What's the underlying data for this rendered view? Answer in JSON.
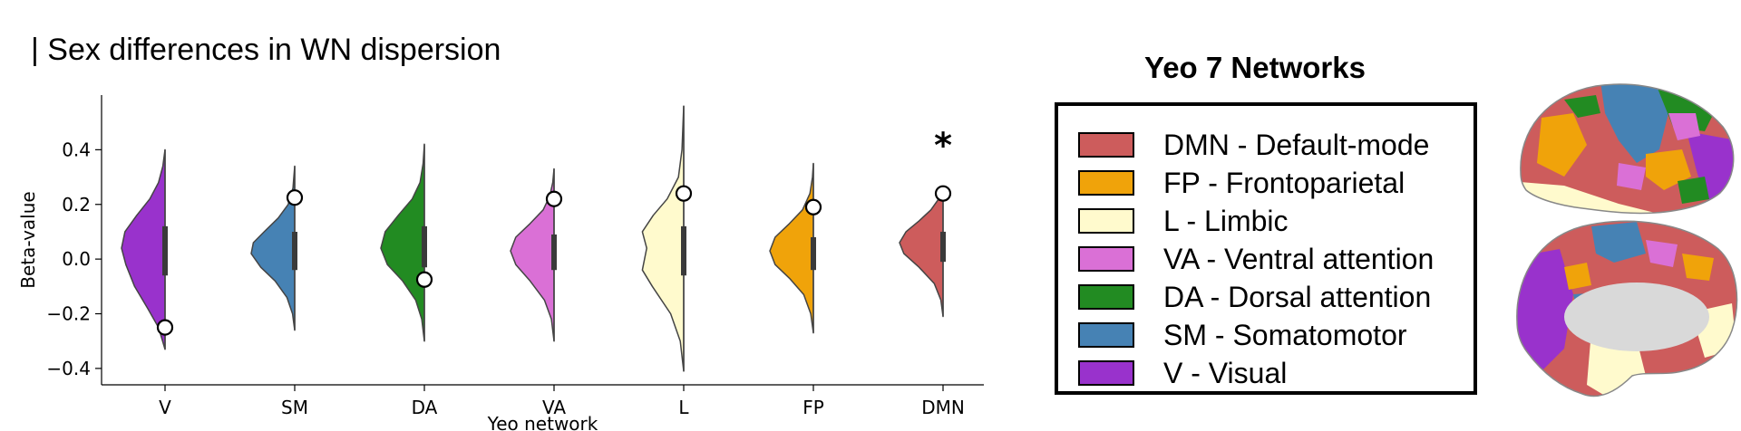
{
  "title": "| Sex differences in WN dispersion",
  "chart_data": {
    "type": "violin",
    "xlabel": "Yeo network",
    "ylabel": "Beta-value",
    "ylim": [
      -0.46,
      0.6
    ],
    "yticks": [
      -0.4,
      -0.2,
      0.0,
      0.2,
      0.4
    ],
    "ytick_labels": [
      "−0.4",
      "−0.2",
      "0.0",
      "0.2",
      "0.4"
    ],
    "categories": [
      "V",
      "SM",
      "DA",
      "VA",
      "L",
      "FP",
      "DMN"
    ],
    "violins": [
      {
        "category": "V",
        "color": "#9932cc",
        "min": -0.33,
        "max": 0.4,
        "q1": -0.06,
        "q3": 0.12,
        "median": 0.03,
        "observed": -0.25,
        "significant": false,
        "profile": [
          [
            -0.33,
            0.0
          ],
          [
            -0.25,
            0.15
          ],
          [
            -0.18,
            0.4
          ],
          [
            -0.1,
            0.7
          ],
          [
            -0.02,
            0.9
          ],
          [
            0.04,
            1.0
          ],
          [
            0.1,
            0.92
          ],
          [
            0.16,
            0.65
          ],
          [
            0.22,
            0.35
          ],
          [
            0.28,
            0.15
          ],
          [
            0.34,
            0.05
          ],
          [
            0.4,
            0.0
          ]
        ]
      },
      {
        "category": "SM",
        "color": "#4682b4",
        "min": -0.26,
        "max": 0.34,
        "q1": -0.04,
        "q3": 0.1,
        "median": 0.03,
        "observed": 0.225,
        "significant": false,
        "profile": [
          [
            -0.26,
            0.0
          ],
          [
            -0.2,
            0.05
          ],
          [
            -0.14,
            0.18
          ],
          [
            -0.08,
            0.45
          ],
          [
            -0.03,
            0.78
          ],
          [
            0.02,
            1.0
          ],
          [
            0.06,
            0.95
          ],
          [
            0.1,
            0.7
          ],
          [
            0.15,
            0.38
          ],
          [
            0.2,
            0.15
          ],
          [
            0.26,
            0.04
          ],
          [
            0.34,
            0.0
          ]
        ]
      },
      {
        "category": "DA",
        "color": "#228b22",
        "min": -0.3,
        "max": 0.42,
        "q1": -0.03,
        "q3": 0.12,
        "median": 0.04,
        "observed": -0.075,
        "significant": false,
        "profile": [
          [
            -0.3,
            0.0
          ],
          [
            -0.22,
            0.06
          ],
          [
            -0.15,
            0.2
          ],
          [
            -0.08,
            0.5
          ],
          [
            -0.02,
            0.85
          ],
          [
            0.04,
            1.0
          ],
          [
            0.1,
            0.9
          ],
          [
            0.16,
            0.6
          ],
          [
            0.22,
            0.28
          ],
          [
            0.28,
            0.1
          ],
          [
            0.35,
            0.03
          ],
          [
            0.42,
            0.0
          ]
        ]
      },
      {
        "category": "VA",
        "color": "#da70d6",
        "min": -0.3,
        "max": 0.33,
        "q1": -0.04,
        "q3": 0.09,
        "median": 0.02,
        "observed": 0.22,
        "significant": false,
        "profile": [
          [
            -0.3,
            0.0
          ],
          [
            -0.22,
            0.06
          ],
          [
            -0.15,
            0.22
          ],
          [
            -0.08,
            0.55
          ],
          [
            -0.02,
            0.88
          ],
          [
            0.03,
            1.0
          ],
          [
            0.08,
            0.88
          ],
          [
            0.13,
            0.55
          ],
          [
            0.18,
            0.25
          ],
          [
            0.23,
            0.1
          ],
          [
            0.28,
            0.03
          ],
          [
            0.33,
            0.0
          ]
        ]
      },
      {
        "category": "L",
        "color": "#fffacd",
        "min": -0.41,
        "max": 0.56,
        "q1": -0.06,
        "q3": 0.12,
        "median": 0.03,
        "observed": 0.24,
        "significant": false,
        "profile": [
          [
            -0.41,
            0.0
          ],
          [
            -0.3,
            0.08
          ],
          [
            -0.2,
            0.3
          ],
          [
            -0.1,
            0.72
          ],
          [
            -0.04,
            0.95
          ],
          [
            0.0,
            0.9
          ],
          [
            0.04,
            0.85
          ],
          [
            0.1,
            0.95
          ],
          [
            0.16,
            0.7
          ],
          [
            0.22,
            0.38
          ],
          [
            0.3,
            0.12
          ],
          [
            0.4,
            0.04
          ],
          [
            0.56,
            0.0
          ]
        ]
      },
      {
        "category": "FP",
        "color": "#f0a30a",
        "min": -0.27,
        "max": 0.35,
        "q1": -0.04,
        "q3": 0.08,
        "median": 0.02,
        "observed": 0.19,
        "significant": false,
        "profile": [
          [
            -0.27,
            0.0
          ],
          [
            -0.2,
            0.06
          ],
          [
            -0.13,
            0.22
          ],
          [
            -0.07,
            0.55
          ],
          [
            -0.02,
            0.88
          ],
          [
            0.03,
            1.0
          ],
          [
            0.08,
            0.88
          ],
          [
            0.13,
            0.55
          ],
          [
            0.18,
            0.25
          ],
          [
            0.24,
            0.08
          ],
          [
            0.3,
            0.02
          ],
          [
            0.35,
            0.0
          ]
        ]
      },
      {
        "category": "DMN",
        "color": "#cd5c5c",
        "min": -0.21,
        "max": 0.25,
        "q1": -0.01,
        "q3": 0.1,
        "median": 0.05,
        "observed": 0.24,
        "significant": true,
        "profile": [
          [
            -0.21,
            0.0
          ],
          [
            -0.15,
            0.05
          ],
          [
            -0.09,
            0.2
          ],
          [
            -0.03,
            0.55
          ],
          [
            0.02,
            0.9
          ],
          [
            0.06,
            1.0
          ],
          [
            0.1,
            0.85
          ],
          [
            0.14,
            0.55
          ],
          [
            0.18,
            0.28
          ],
          [
            0.22,
            0.1
          ],
          [
            0.25,
            0.0
          ]
        ]
      }
    ],
    "significance_marker": "*"
  },
  "legend": {
    "title": "Yeo 7 Networks",
    "items": [
      {
        "label": "DMN - Default-mode",
        "color": "#cd5c5c"
      },
      {
        "label": "FP - Frontoparietal",
        "color": "#f0a30a"
      },
      {
        "label": "L - Limbic",
        "color": "#fffacd"
      },
      {
        "label": "VA - Ventral attention",
        "color": "#da70d6"
      },
      {
        "label": "DA - Dorsal attention",
        "color": "#228b22"
      },
      {
        "label": "SM - Somatomotor",
        "color": "#4682b4"
      },
      {
        "label": "V - Visual",
        "color": "#9932cc"
      }
    ]
  }
}
